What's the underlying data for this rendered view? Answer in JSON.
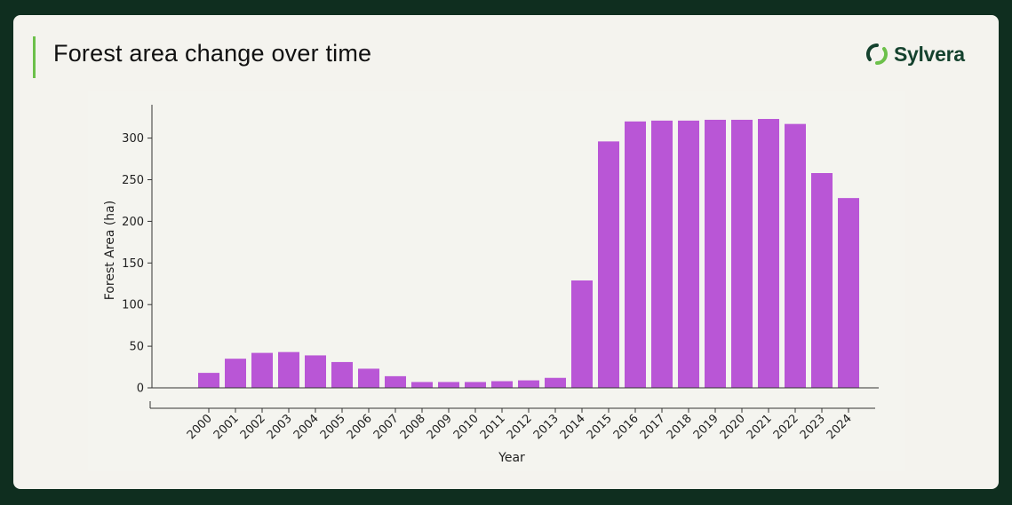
{
  "header": {
    "title": "Forest area change over time",
    "logo_text": "Sylvera"
  },
  "colors": {
    "background": "#0f2e1f",
    "card": "#f4f3ee",
    "accent": "#6cc04a",
    "bar": "#b956d6"
  },
  "chart_data": {
    "type": "bar",
    "categories": [
      "2000",
      "2001",
      "2002",
      "2003",
      "2004",
      "2005",
      "2006",
      "2007",
      "2008",
      "2009",
      "2010",
      "2011",
      "2012",
      "2013",
      "2014",
      "2015",
      "2016",
      "2017",
      "2018",
      "2019",
      "2020",
      "2021",
      "2022",
      "2023",
      "2024"
    ],
    "values": [
      18,
      35,
      42,
      43,
      39,
      31,
      23,
      14,
      7,
      7,
      7,
      8,
      9,
      12,
      129,
      296,
      320,
      321,
      321,
      322,
      322,
      323,
      317,
      258,
      228
    ],
    "xlabel": "Year",
    "ylabel": "Forest Area (ha)",
    "ylim": [
      0,
      340
    ],
    "yticks": [
      0,
      50,
      100,
      150,
      200,
      250,
      300
    ],
    "grid": false
  }
}
